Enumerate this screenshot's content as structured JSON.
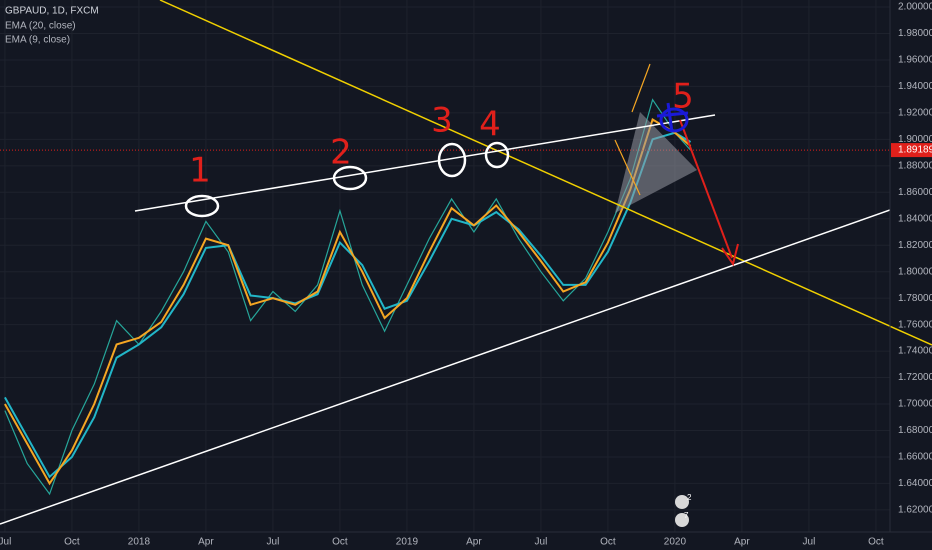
{
  "chart_data": {
    "type": "line",
    "title": "GBPAUD, 1D, FXCM",
    "x": [
      0,
      1,
      2,
      3,
      4,
      5,
      6,
      7,
      8,
      9,
      10,
      11,
      12,
      13,
      14,
      15,
      16,
      17,
      18,
      19,
      20,
      21,
      22,
      23,
      24,
      25,
      26,
      27,
      28,
      29,
      30,
      30.7
    ],
    "series": [
      {
        "name": "GBPAUD",
        "color": "#26a69a",
        "values": [
          1.695,
          1.655,
          1.632,
          1.68,
          1.715,
          1.763,
          1.745,
          1.77,
          1.8,
          1.838,
          1.815,
          1.763,
          1.785,
          1.77,
          1.79,
          1.846,
          1.79,
          1.755,
          1.79,
          1.825,
          1.855,
          1.83,
          1.855,
          1.825,
          1.8,
          1.778,
          1.795,
          1.83,
          1.87,
          1.93,
          1.905,
          1.89189
        ]
      },
      {
        "name": "EMA (20, close)",
        "color": "#22b6c8",
        "values": [
          1.705,
          1.675,
          1.645,
          1.66,
          1.69,
          1.735,
          1.745,
          1.758,
          1.783,
          1.818,
          1.82,
          1.782,
          1.78,
          1.776,
          1.783,
          1.822,
          1.805,
          1.772,
          1.778,
          1.808,
          1.84,
          1.835,
          1.845,
          1.832,
          1.812,
          1.79,
          1.79,
          1.815,
          1.852,
          1.9,
          1.905,
          1.898
        ]
      },
      {
        "name": "EMA (9, close)",
        "color": "#f5a623",
        "values": [
          1.7,
          1.67,
          1.64,
          1.665,
          1.7,
          1.745,
          1.75,
          1.762,
          1.79,
          1.825,
          1.82,
          1.775,
          1.78,
          1.775,
          1.785,
          1.83,
          1.8,
          1.765,
          1.78,
          1.815,
          1.848,
          1.835,
          1.85,
          1.83,
          1.808,
          1.785,
          1.792,
          1.822,
          1.862,
          1.915,
          1.905,
          1.895
        ]
      }
    ],
    "xlim": [
      -0.22,
      39.63
    ],
    "xticks": [
      {
        "value": 0,
        "label": "Jul"
      },
      {
        "value": 3,
        "label": "Oct"
      },
      {
        "value": 6,
        "label": "2018"
      },
      {
        "value": 9,
        "label": "Apr"
      },
      {
        "value": 12,
        "label": "Jul"
      },
      {
        "value": 15,
        "label": "Oct"
      },
      {
        "value": 18,
        "label": "2019"
      },
      {
        "value": 21,
        "label": "Apr"
      },
      {
        "value": 24,
        "label": "Jul"
      },
      {
        "value": 27,
        "label": "Oct"
      },
      {
        "value": 30,
        "label": "2020"
      },
      {
        "value": 33,
        "label": "Apr"
      },
      {
        "value": 36,
        "label": "Jul"
      },
      {
        "value": 39,
        "label": "Oct"
      }
    ],
    "ylim": [
      1.6033,
      2.0053
    ],
    "yticks": [
      {
        "value": 1.62,
        "label": "1.62000"
      },
      {
        "value": 1.64,
        "label": "1.64000"
      },
      {
        "value": 1.66,
        "label": "1.66000"
      },
      {
        "value": 1.68,
        "label": "1.68000"
      },
      {
        "value": 1.7,
        "label": "1.70000"
      },
      {
        "value": 1.72,
        "label": "1.72000"
      },
      {
        "value": 1.74,
        "label": "1.74000"
      },
      {
        "value": 1.76,
        "label": "1.76000"
      },
      {
        "value": 1.78,
        "label": "1.78000"
      },
      {
        "value": 1.8,
        "label": "1.80000"
      },
      {
        "value": 1.82,
        "label": "1.82000"
      },
      {
        "value": 1.84,
        "label": "1.84000"
      },
      {
        "value": 1.86,
        "label": "1.86000"
      },
      {
        "value": 1.88,
        "label": "1.88000"
      },
      {
        "value": 1.9,
        "label": "1.90000"
      },
      {
        "value": 1.92,
        "label": "1.92000"
      },
      {
        "value": 1.94,
        "label": "1.94000"
      },
      {
        "value": 1.96,
        "label": "1.96000"
      },
      {
        "value": 1.98,
        "label": "1.98000"
      },
      {
        "value": 2.0,
        "label": "2.00000"
      }
    ],
    "last_price": 1.89189,
    "annotations": [
      "1",
      "2",
      "3",
      "4",
      "5"
    ],
    "markers": [
      "2",
      "7"
    ]
  }
}
